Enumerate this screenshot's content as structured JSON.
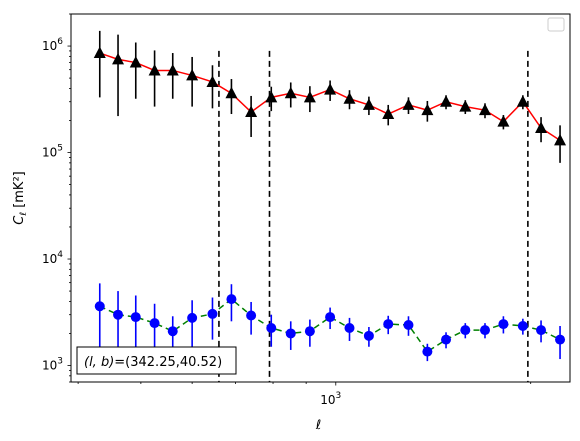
{
  "chart_data": {
    "type": "scatter",
    "title": "",
    "xlabel": "ℓ",
    "ylabel": "C_ℓ [mK²]",
    "xscale": "log",
    "yscale": "log",
    "xlim": [
      390,
      2300
    ],
    "ylim": [
      700,
      2000000
    ],
    "x_tick_labels": [
      {
        "value": 1000,
        "label": "10^3"
      }
    ],
    "y_tick_labels": [
      {
        "value": 1000,
        "label": "10^3"
      },
      {
        "value": 10000,
        "label": "10^4"
      },
      {
        "value": 100000,
        "label": "10^5"
      },
      {
        "value": 1000000,
        "label": "10^6"
      }
    ],
    "grid": false,
    "legend": {
      "placement": "top-right",
      "entries": []
    },
    "vlines": [
      660,
      790,
      1980
    ],
    "annotation": {
      "base": "(l, b)",
      "value": "=(342.25,40.52)",
      "placement": "bottom-left"
    },
    "x": [
      432,
      461,
      491,
      525,
      560,
      600,
      645,
      690,
      740,
      795,
      852,
      912,
      980,
      1050,
      1125,
      1205,
      1295,
      1385,
      1480,
      1585,
      1700,
      1815,
      1945,
      2075,
      2220
    ],
    "series": [
      {
        "marker": "triangle",
        "color": "#000000",
        "line_color": "#ff0000",
        "line_style": "solid",
        "y": [
          860000,
          750000,
          700000,
          590000,
          590000,
          530000,
          460000,
          360000,
          240000,
          330000,
          360000,
          330000,
          390000,
          320000,
          280000,
          230000,
          280000,
          250000,
          300000,
          270000,
          250000,
          195000,
          300000,
          170000,
          130000
        ],
        "err": [
          530000,
          530000,
          380000,
          320000,
          270000,
          260000,
          200000,
          130000,
          100000,
          85000,
          95000,
          90000,
          85000,
          65000,
          55000,
          50000,
          50000,
          55000,
          45000,
          40000,
          40000,
          30000,
          45000,
          45000,
          50000
        ]
      },
      {
        "marker": "circle",
        "color": "#0000ff",
        "line_color": "#008000",
        "line_style": "dashed",
        "y": [
          3600,
          3000,
          2850,
          2500,
          2100,
          2800,
          3050,
          4200,
          2950,
          2250,
          2000,
          2100,
          2850,
          2250,
          1900,
          2450,
          2400,
          1350,
          1750,
          2150,
          2150,
          2450,
          2350,
          2150,
          1750
        ],
        "err": [
          2300,
          2000,
          1700,
          1300,
          800,
          1300,
          1300,
          1600,
          1000,
          750,
          600,
          600,
          650,
          550,
          400,
          480,
          500,
          250,
          300,
          350,
          350,
          450,
          400,
          500,
          600
        ]
      }
    ]
  }
}
